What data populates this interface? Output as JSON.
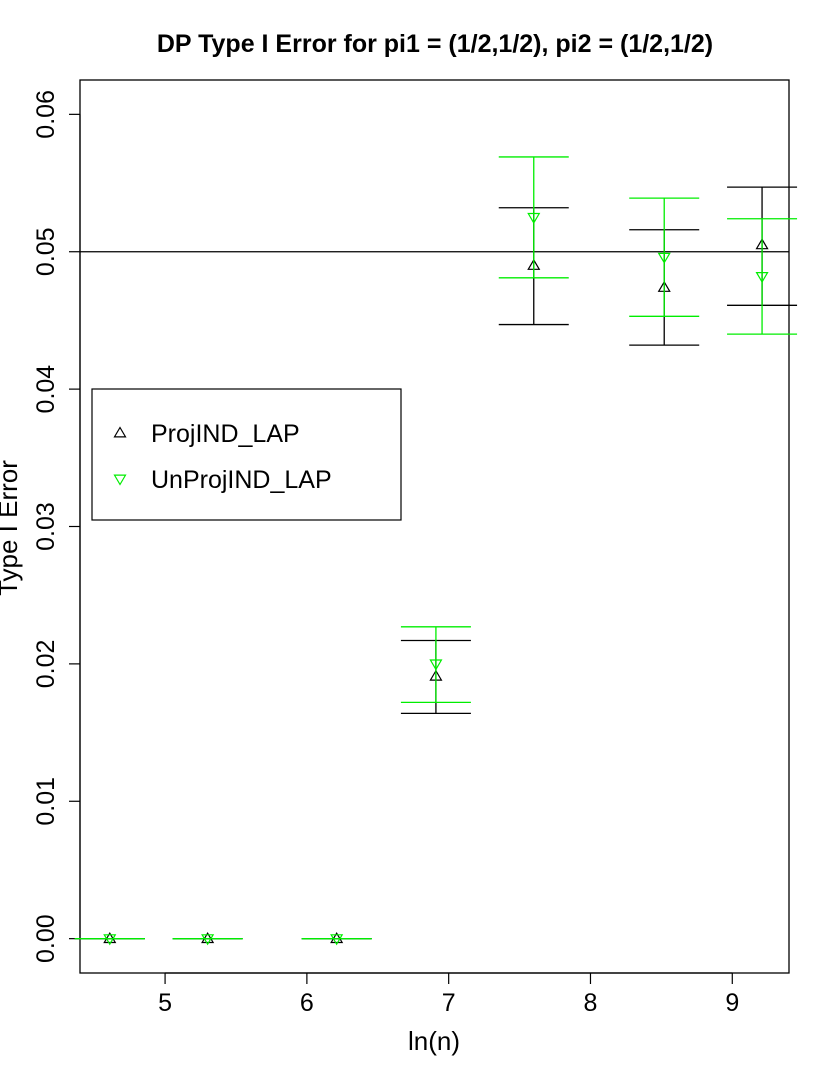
{
  "chart_data": {
    "type": "scatter",
    "title": "DP Type I Error for pi1 = (1/2,1/2), pi2 = (1/2,1/2)",
    "xlabel": "ln(n)",
    "ylabel": "Type I Error",
    "xlim": [
      4.4,
      9.4
    ],
    "ylim": [
      -0.0025,
      0.0625
    ],
    "xticks": [
      5,
      6,
      7,
      8,
      9
    ],
    "yticks": [
      0.0,
      0.01,
      0.02,
      0.03,
      0.04,
      0.05,
      0.06
    ],
    "ytick_labels": [
      "0.00",
      "0.01",
      "0.02",
      "0.03",
      "0.04",
      "0.05",
      "0.06"
    ],
    "reference_line": 0.05,
    "grid": false,
    "legend_position": "left",
    "series": [
      {
        "name": "ProjIND_LAP",
        "color": "#000000",
        "marker": "triangle-up",
        "points": [
          {
            "x": 4.61,
            "y": 0.0,
            "lo": 0.0,
            "hi": 0.0
          },
          {
            "x": 5.3,
            "y": 0.0,
            "lo": 0.0,
            "hi": 0.0
          },
          {
            "x": 6.21,
            "y": 0.0,
            "lo": 0.0,
            "hi": 0.0
          },
          {
            "x": 6.91,
            "y": 0.0191,
            "lo": 0.0164,
            "hi": 0.0217
          },
          {
            "x": 7.6,
            "y": 0.049,
            "lo": 0.0447,
            "hi": 0.0532
          },
          {
            "x": 8.52,
            "y": 0.0474,
            "lo": 0.0432,
            "hi": 0.0516
          },
          {
            "x": 9.21,
            "y": 0.0505,
            "lo": 0.0461,
            "hi": 0.0547
          }
        ]
      },
      {
        "name": "UnProjIND_LAP",
        "color": "#00ee00",
        "marker": "triangle-down",
        "points": [
          {
            "x": 4.61,
            "y": 0.0,
            "lo": 0.0,
            "hi": 0.0
          },
          {
            "x": 5.3,
            "y": 0.0,
            "lo": 0.0,
            "hi": 0.0
          },
          {
            "x": 6.21,
            "y": 0.0,
            "lo": 0.0,
            "hi": 0.0
          },
          {
            "x": 6.91,
            "y": 0.02,
            "lo": 0.0172,
            "hi": 0.0227
          },
          {
            "x": 7.6,
            "y": 0.0525,
            "lo": 0.0481,
            "hi": 0.0569
          },
          {
            "x": 8.52,
            "y": 0.0496,
            "lo": 0.0453,
            "hi": 0.0539
          },
          {
            "x": 9.21,
            "y": 0.0482,
            "lo": 0.044,
            "hi": 0.0524
          }
        ]
      }
    ]
  }
}
